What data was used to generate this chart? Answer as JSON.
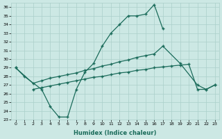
{
  "xlabel": "Humidex (Indice chaleur)",
  "xlim": [
    -0.5,
    23.5
  ],
  "ylim": [
    23,
    36.5
  ],
  "xticks": [
    0,
    1,
    2,
    3,
    4,
    5,
    6,
    7,
    8,
    9,
    10,
    11,
    12,
    13,
    14,
    15,
    16,
    17,
    18,
    19,
    20,
    21,
    22,
    23
  ],
  "yticks": [
    23,
    24,
    25,
    26,
    27,
    28,
    29,
    30,
    31,
    32,
    33,
    34,
    35,
    36
  ],
  "line_color": "#1a6b5a",
  "bg_color": "#cce8e4",
  "grid_color": "#aacfca",
  "line1_x": [
    0,
    1,
    3,
    4,
    5,
    6,
    7,
    8,
    9,
    10,
    11,
    12,
    13,
    14,
    15,
    16,
    17
  ],
  "line1_y": [
    29,
    28,
    26.5,
    24.5,
    23.3,
    23.3,
    26.5,
    28.5,
    29.5,
    31.5,
    33,
    34,
    35,
    35,
    35.2,
    36.3,
    33.5
  ],
  "line2_x": [
    0,
    2,
    3,
    4,
    5,
    6,
    7,
    8,
    9,
    10,
    11,
    12,
    13,
    14,
    15,
    16,
    17,
    19,
    21,
    22,
    23
  ],
  "line2_y": [
    29,
    27.2,
    27.5,
    27.8,
    28.0,
    28.2,
    28.4,
    28.7,
    28.9,
    29.2,
    29.4,
    29.7,
    29.9,
    30.2,
    30.4,
    30.6,
    31.5,
    29.5,
    27,
    26.5,
    27
  ],
  "line3_x": [
    2,
    3,
    4,
    5,
    6,
    7,
    8,
    9,
    10,
    11,
    12,
    13,
    14,
    15,
    16,
    17,
    18,
    19,
    20,
    21,
    22,
    23
  ],
  "line3_y": [
    26.5,
    26.7,
    26.9,
    27.1,
    27.3,
    27.5,
    27.7,
    27.9,
    28.0,
    28.2,
    28.4,
    28.5,
    28.7,
    28.8,
    29.0,
    29.1,
    29.2,
    29.3,
    29.4,
    26.5,
    26.5,
    27
  ]
}
